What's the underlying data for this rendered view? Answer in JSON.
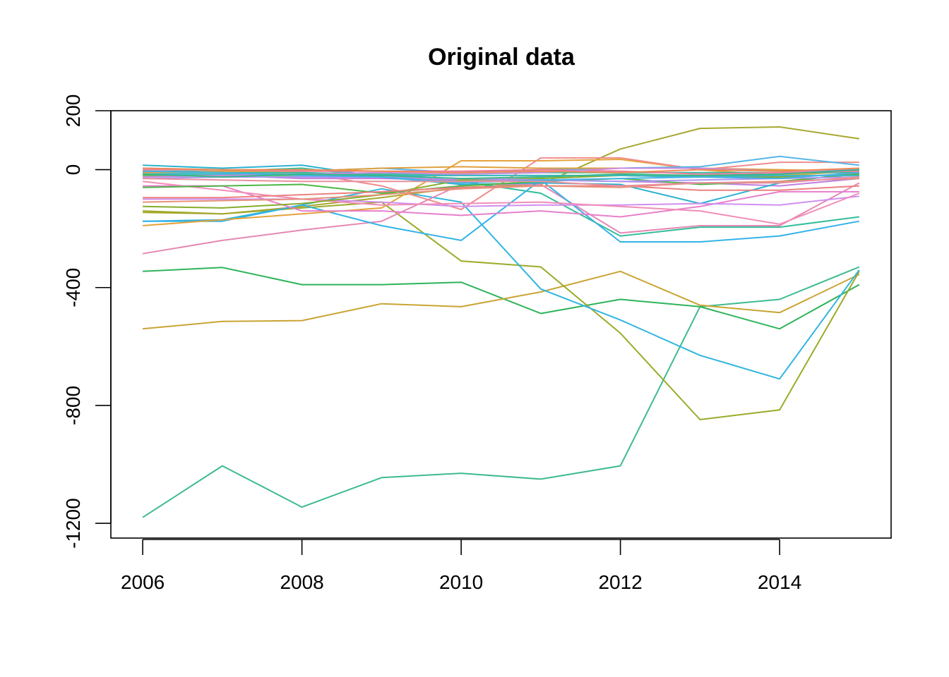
{
  "chart_data": {
    "type": "line",
    "title": "Original data",
    "xlabel": "",
    "ylabel": "",
    "xlim": [
      2005.6,
      2015.4
    ],
    "ylim": [
      -1250,
      200
    ],
    "x": [
      2006,
      2007,
      2008,
      2009,
      2010,
      2011,
      2012,
      2013,
      2014,
      2015
    ],
    "x_ticks": [
      2006,
      2008,
      2010,
      2012,
      2014
    ],
    "y_ticks": [
      200,
      0,
      -400,
      -800,
      -1200
    ],
    "y_tick_labels": [
      "200",
      "0",
      "-400",
      "-800",
      "-1200"
    ],
    "grid": false,
    "legend": "none",
    "series": [
      {
        "color": "#3DBB8C",
        "values": [
          -1180,
          -1005,
          -1145,
          -1045,
          -1030,
          -1050,
          -1005,
          -465,
          -440,
          -330
        ]
      },
      {
        "color": "#2FB35A",
        "values": [
          -345,
          -332,
          -390,
          -390,
          -382,
          -488,
          -440,
          -465,
          -540,
          -390
        ]
      },
      {
        "color": "#C9A433",
        "values": [
          -540,
          -515,
          -512,
          -455,
          -465,
          -415,
          -345,
          -460,
          -485,
          -355
        ]
      },
      {
        "color": "#9BAA28",
        "values": [
          -140,
          -150,
          -130,
          -110,
          -310,
          -330,
          -555,
          -848,
          -815,
          -345
        ]
      },
      {
        "color": "#31B5E0",
        "values": [
          -175,
          -170,
          -120,
          -65,
          -110,
          -405,
          -510,
          -630,
          -710,
          -340
        ]
      },
      {
        "color": "#A6A830",
        "values": [
          -145,
          -150,
          -125,
          -95,
          -60,
          -50,
          70,
          140,
          145,
          105
        ]
      },
      {
        "color": "#E588B6",
        "values": [
          -285,
          -240,
          -205,
          -175,
          -50,
          -50,
          -215,
          -190,
          -190,
          -45
        ]
      },
      {
        "color": "#35BE9A",
        "values": [
          -5,
          -5,
          5,
          -25,
          -40,
          -80,
          -225,
          -195,
          -195,
          -160
        ]
      },
      {
        "color": "#33B3E8",
        "values": [
          -175,
          -175,
          -120,
          -190,
          -240,
          -35,
          -245,
          -245,
          -225,
          -175
        ]
      },
      {
        "color": "#E5A33B",
        "values": [
          -190,
          -170,
          -150,
          -130,
          30,
          30,
          35,
          0,
          -20,
          -5
        ]
      },
      {
        "color": "#F08C8C",
        "values": [
          -5,
          -10,
          -10,
          -55,
          -135,
          40,
          40,
          0,
          25,
          25
        ]
      },
      {
        "color": "#C07FE0",
        "values": [
          -20,
          -20,
          -30,
          -30,
          -35,
          -35,
          -40,
          -45,
          -55,
          -30
        ]
      },
      {
        "color": "#2AB3D1",
        "values": [
          15,
          5,
          15,
          -25,
          -50,
          -45,
          -50,
          -115,
          -45,
          -10
        ]
      },
      {
        "color": "#E77FCB",
        "values": [
          -55,
          -55,
          -140,
          -140,
          -155,
          -140,
          -160,
          -125,
          -75,
          -75
        ]
      },
      {
        "color": "#D08FF0",
        "values": [
          -100,
          -100,
          -100,
          -110,
          -125,
          -120,
          -120,
          -115,
          -120,
          -90
        ]
      },
      {
        "color": "#F28DB8",
        "values": [
          -40,
          -70,
          -100,
          -120,
          -115,
          -110,
          -125,
          -140,
          -185,
          -80
        ]
      },
      {
        "color": "#86AC2D",
        "values": [
          -125,
          -130,
          -115,
          -85,
          -35,
          -30,
          -20,
          -25,
          -25,
          -15
        ]
      },
      {
        "color": "#4FB548",
        "values": [
          -60,
          -55,
          -50,
          -80,
          -55,
          -40,
          -30,
          -50,
          -40,
          -15
        ]
      },
      {
        "color": "#ED8080",
        "values": [
          -95,
          -95,
          -85,
          -75,
          -60,
          -55,
          -55,
          -70,
          -70,
          -55
        ]
      },
      {
        "color": "#54B6E8",
        "values": [
          5,
          0,
          -5,
          5,
          -10,
          0,
          5,
          10,
          45,
          15
        ]
      },
      {
        "color": "#E5937C",
        "values": [
          -110,
          -105,
          -100,
          -85,
          -65,
          -55,
          -60,
          -45,
          -40,
          -30
        ]
      },
      {
        "color": "#33BE9F",
        "values": [
          -10,
          -10,
          -10,
          -15,
          -15,
          -10,
          -10,
          -10,
          -10,
          -10
        ]
      },
      {
        "color": "#AD97F0",
        "values": [
          -30,
          -25,
          -25,
          -25,
          -30,
          -35,
          -40,
          -35,
          -30,
          -25
        ]
      },
      {
        "color": "#E0A03E",
        "values": [
          -10,
          -5,
          -5,
          5,
          10,
          5,
          5,
          5,
          0,
          -5
        ]
      },
      {
        "color": "#5EBC55",
        "values": [
          -20,
          -20,
          -20,
          -20,
          -20,
          -20,
          -20,
          -20,
          -20,
          -20
        ]
      },
      {
        "color": "#F07C9E",
        "values": [
          0,
          0,
          -5,
          -5,
          -5,
          0,
          -5,
          -15,
          -10,
          -5
        ]
      },
      {
        "color": "#3CB8C6",
        "values": [
          -15,
          -15,
          -15,
          -20,
          -20,
          -20,
          -20,
          -25,
          -20,
          -20
        ]
      },
      {
        "color": "#C98ADF",
        "values": [
          -25,
          -20,
          -15,
          -10,
          -15,
          -10,
          5,
          5,
          -5,
          0
        ]
      },
      {
        "color": "#EE8A55",
        "values": [
          5,
          0,
          0,
          -5,
          -10,
          -5,
          -10,
          0,
          -5,
          5
        ]
      },
      {
        "color": "#45B1E6",
        "values": [
          -5,
          -10,
          -20,
          -25,
          -45,
          -35,
          -30,
          -25,
          -30,
          -10
        ]
      },
      {
        "color": "#E98F9F",
        "values": [
          -30,
          -35,
          -40,
          -40,
          -40,
          -40,
          -55,
          -45,
          -45,
          -25
        ]
      },
      {
        "color": "#38B689",
        "values": [
          -15,
          -25,
          -15,
          -20,
          -30,
          -25,
          -15,
          -20,
          -15,
          0
        ]
      }
    ]
  }
}
